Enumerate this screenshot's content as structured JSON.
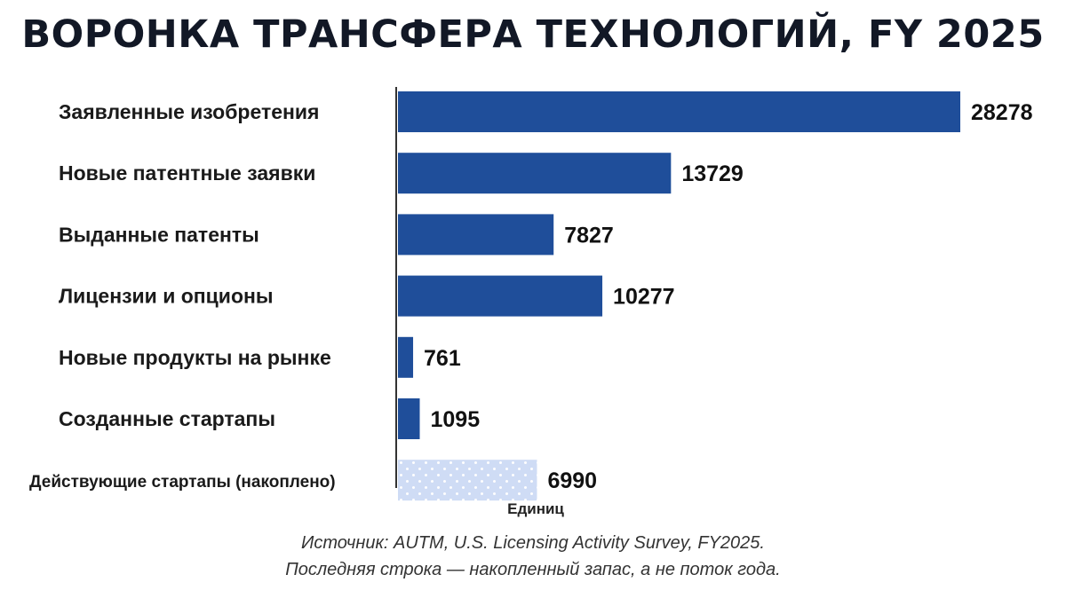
{
  "chart_data": {
    "type": "bar",
    "orientation": "horizontal",
    "title": "ВОРОНКА ТРАНСФЕРА ТЕХНОЛОГИЙ, FY 2025",
    "xlabel": "Единиц",
    "ylabel": "",
    "categories": [
      "Заявленные изобретения",
      "Новые патентные заявки",
      "Выданные патенты",
      "Лицензии и опционы",
      "Новые продукты на рынке",
      "Созданные стартапы",
      "Действующие стартапы (накоплено)"
    ],
    "values": [
      28278,
      13729,
      7827,
      10277,
      761,
      1095,
      6990
    ],
    "value_labels": [
      "28278",
      "13729",
      "7827",
      "10277",
      "761",
      "1095",
      "6990"
    ],
    "xlim": [
      0,
      28278
    ],
    "grid": false,
    "legend": "none",
    "bar_color": "#1f4e9a",
    "stock_bar_color": "#cfdcf5",
    "stock_bar_dot_color": "#ffffff",
    "stock_bar_index": 6
  },
  "notes": {
    "source": "Источник: AUTM, U.S. Licensing Activity Survey, FY2025.",
    "note": "Последняя строка — накопленный запас, а не поток года."
  }
}
